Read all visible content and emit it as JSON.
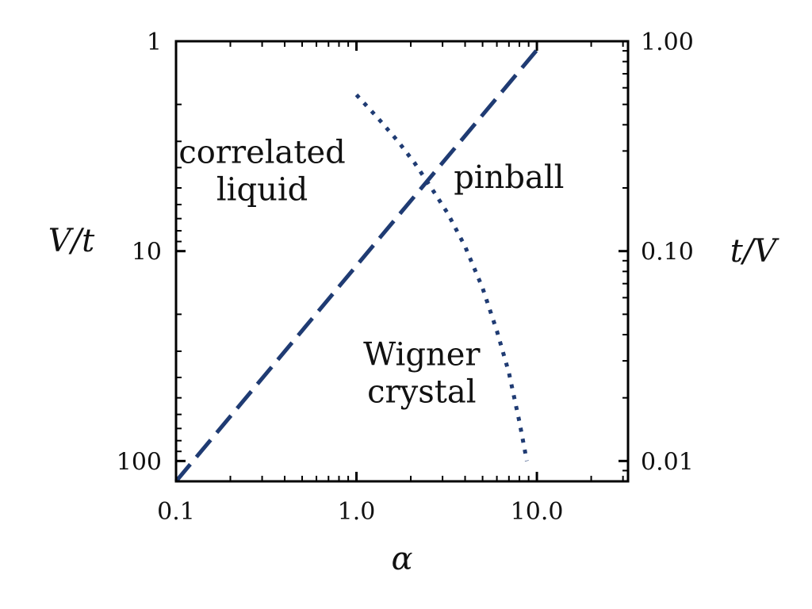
{
  "chart_data": {
    "type": "line",
    "xscale": "log",
    "yscale": "log",
    "y_inverted": true,
    "xlabel": "α",
    "ylabel": "V/t",
    "ylabel_right": "t/V",
    "xlim": [
      0.1,
      32
    ],
    "ylim": [
      1,
      125
    ],
    "x_major_ticks": [
      {
        "value": 0.1,
        "label": "0.1"
      },
      {
        "value": 1,
        "label": "1.0"
      },
      {
        "value": 10,
        "label": "10.0"
      }
    ],
    "y_major_ticks": [
      {
        "value": 1,
        "label": "1"
      },
      {
        "value": 10,
        "label": "10"
      },
      {
        "value": 100,
        "label": "100"
      }
    ],
    "y_right_major_ticks": [
      {
        "value": 1.0,
        "label": "1.00"
      },
      {
        "value": 0.1,
        "label": "0.10"
      },
      {
        "value": 0.01,
        "label": "0.01"
      }
    ],
    "grid": false,
    "colors": {
      "line": "#1f3b73",
      "axis": "#000000"
    },
    "series": [
      {
        "style": "dashed",
        "x": [
          0.1,
          10
        ],
        "y": [
          125,
          1.1
        ]
      },
      {
        "style": "dotted",
        "x": [
          1.0,
          1.3,
          1.7,
          2.1,
          2.6,
          3.2,
          4.0,
          5.0,
          6.0,
          7.0,
          8.0,
          8.8
        ],
        "y": [
          1.8,
          2.3,
          3.0,
          3.8,
          5.0,
          6.6,
          9.5,
          15.0,
          24.0,
          38.0,
          65.0,
          100.0
        ]
      }
    ],
    "annotations": [
      {
        "lines": [
          "correlated",
          "liquid"
        ],
        "x": 0.3,
        "y": 3.8
      },
      {
        "lines": [
          "pinball"
        ],
        "x": 7.0,
        "y": 5.0
      },
      {
        "lines": [
          "Wigner",
          "crystal"
        ],
        "x": 2.3,
        "y": 35
      }
    ]
  }
}
